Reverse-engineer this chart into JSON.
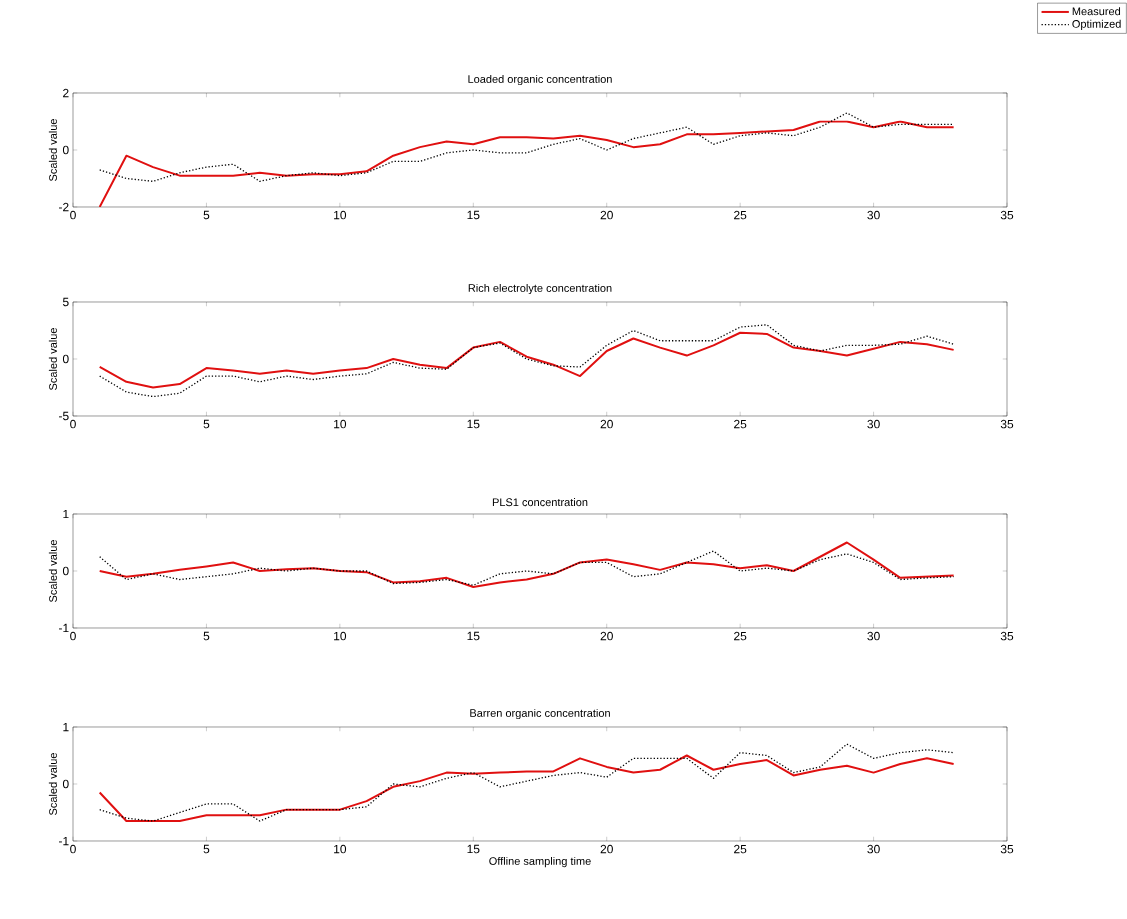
{
  "chart_data": [
    {
      "type": "line",
      "title": "Loaded organic concentration",
      "ylabel": "Scaled value",
      "legend": "top right",
      "x": [
        1,
        2,
        3,
        4,
        5,
        6,
        7,
        8,
        9,
        10,
        11,
        12,
        13,
        14,
        15,
        16,
        17,
        18,
        19,
        20,
        21,
        22,
        23,
        24,
        25,
        26,
        27,
        28,
        29,
        30,
        31,
        32,
        33
      ],
      "xlim": [
        0,
        35
      ],
      "xticks": [
        0,
        5,
        10,
        15,
        20,
        25,
        30,
        35
      ],
      "ylim": [
        -2,
        2
      ],
      "yticks": [
        -2,
        0,
        2
      ],
      "series": [
        {
          "name": "Measured",
          "color": "#e01010",
          "line_style": "solid",
          "values": [
            -2,
            -0.2,
            -0.6,
            -0.9,
            -0.9,
            -0.9,
            -0.8,
            -0.9,
            -0.85,
            -0.85,
            -0.75,
            -0.2,
            0.1,
            0.3,
            0.2,
            0.45,
            0.45,
            0.4,
            0.5,
            0.35,
            0.1,
            0.2,
            0.55,
            0.55,
            0.6,
            0.65,
            0.7,
            1.0,
            1.0,
            0.8,
            1.0,
            0.8,
            0.8
          ]
        },
        {
          "name": "Optimized",
          "color": "#000000",
          "line_style": "dotted",
          "values": [
            -0.7,
            -1.0,
            -1.1,
            -0.8,
            -0.6,
            -0.5,
            -1.1,
            -0.9,
            -0.8,
            -0.9,
            -0.8,
            -0.4,
            -0.4,
            -0.1,
            0.0,
            -0.1,
            -0.1,
            0.2,
            0.4,
            0.0,
            0.4,
            0.6,
            0.8,
            0.2,
            0.5,
            0.6,
            0.5,
            0.8,
            1.3,
            0.8,
            0.9,
            0.9,
            0.9
          ]
        }
      ]
    },
    {
      "type": "line",
      "title": "Rich electrolyte concentration",
      "ylabel": "Scaled value",
      "x": [
        1,
        2,
        3,
        4,
        5,
        6,
        7,
        8,
        9,
        10,
        11,
        12,
        13,
        14,
        15,
        16,
        17,
        18,
        19,
        20,
        21,
        22,
        23,
        24,
        25,
        26,
        27,
        28,
        29,
        30,
        31,
        32,
        33
      ],
      "xlim": [
        0,
        35
      ],
      "xticks": [
        0,
        5,
        10,
        15,
        20,
        25,
        30,
        35
      ],
      "ylim": [
        -5,
        5
      ],
      "yticks": [
        -5,
        0,
        5
      ],
      "series": [
        {
          "color": "#e01010",
          "line_style": "solid",
          "values": [
            -0.7,
            -2,
            -2.5,
            -2.2,
            -0.8,
            -1,
            -1.3,
            -1,
            -1.3,
            -1,
            -0.8,
            0,
            -0.5,
            -0.8,
            1,
            1.5,
            0.2,
            -0.5,
            -1.5,
            0.7,
            1.8,
            1.0,
            0.3,
            1.2,
            2.3,
            2.2,
            1.0,
            0.7,
            0.3,
            0.9,
            1.5,
            1.3,
            0.8
          ]
        },
        {
          "color": "#000000",
          "line_style": "dotted",
          "values": [
            -1.5,
            -2.9,
            -3.3,
            -3,
            -1.5,
            -1.5,
            -2,
            -1.5,
            -1.8,
            -1.5,
            -1.3,
            -0.3,
            -0.8,
            -0.9,
            1.0,
            1.4,
            0.0,
            -0.6,
            -0.7,
            1.2,
            2.5,
            1.6,
            1.6,
            1.6,
            2.8,
            3.0,
            1.2,
            0.7,
            1.2,
            1.2,
            1.3,
            2.0,
            1.3
          ]
        }
      ]
    },
    {
      "type": "line",
      "title": "PLS1 concentration",
      "ylabel": "Scaled value",
      "x": [
        1,
        2,
        3,
        4,
        5,
        6,
        7,
        8,
        9,
        10,
        11,
        12,
        13,
        14,
        15,
        16,
        17,
        18,
        19,
        20,
        21,
        22,
        23,
        24,
        25,
        26,
        27,
        28,
        29,
        30,
        31,
        32,
        33
      ],
      "xlim": [
        0,
        35
      ],
      "xticks": [
        0,
        5,
        10,
        15,
        20,
        25,
        30,
        35
      ],
      "ylim": [
        -1,
        1
      ],
      "yticks": [
        -1,
        0,
        1
      ],
      "series": [
        {
          "color": "#e01010",
          "line_style": "solid",
          "values": [
            0,
            -0.1,
            -0.05,
            0.02,
            0.08,
            0.15,
            0.0,
            0.03,
            0.05,
            0,
            -0.02,
            -0.2,
            -0.18,
            -0.12,
            -0.28,
            -0.2,
            -0.15,
            -0.05,
            0.15,
            0.2,
            0.12,
            0.02,
            0.15,
            0.12,
            0.05,
            0.1,
            0.0,
            0.25,
            0.5,
            0.2,
            -0.12,
            -0.1,
            -0.08
          ]
        },
        {
          "color": "#000000",
          "line_style": "dotted",
          "values": [
            0.25,
            -0.15,
            -0.05,
            -0.15,
            -0.1,
            -0.05,
            0.05,
            0.0,
            0.05,
            0.0,
            0.0,
            -0.22,
            -0.2,
            -0.15,
            -0.25,
            -0.05,
            0.0,
            -0.05,
            0.15,
            0.15,
            -0.1,
            -0.05,
            0.15,
            0.35,
            0.0,
            0.05,
            0.0,
            0.2,
            0.3,
            0.15,
            -0.15,
            -0.12,
            -0.1
          ]
        }
      ]
    },
    {
      "type": "line",
      "title": "Barren organic concentration",
      "ylabel": "Scaled value",
      "xlabel": "Offline sampling time",
      "x": [
        1,
        2,
        3,
        4,
        5,
        6,
        7,
        8,
        9,
        10,
        11,
        12,
        13,
        14,
        15,
        16,
        17,
        18,
        19,
        20,
        21,
        22,
        23,
        24,
        25,
        26,
        27,
        28,
        29,
        30,
        31,
        32,
        33
      ],
      "xlim": [
        0,
        35
      ],
      "xticks": [
        0,
        5,
        10,
        15,
        20,
        25,
        30,
        35
      ],
      "ylim": [
        -1,
        1
      ],
      "yticks": [
        -1,
        0,
        1
      ],
      "series": [
        {
          "color": "#e01010",
          "line_style": "solid",
          "values": [
            -0.15,
            -0.65,
            -0.65,
            -0.65,
            -0.55,
            -0.55,
            -0.55,
            -0.45,
            -0.45,
            -0.45,
            -0.3,
            -0.05,
            0.05,
            0.2,
            0.18,
            0.2,
            0.22,
            0.22,
            0.45,
            0.3,
            0.2,
            0.25,
            0.5,
            0.25,
            0.35,
            0.42,
            0.15,
            0.25,
            0.32,
            0.2,
            0.35,
            0.45,
            0.35
          ]
        },
        {
          "color": "#000000",
          "line_style": "dotted",
          "values": [
            -0.45,
            -0.6,
            -0.65,
            -0.5,
            -0.35,
            -0.35,
            -0.65,
            -0.45,
            -0.45,
            -0.45,
            -0.4,
            0.0,
            -0.05,
            0.1,
            0.2,
            -0.05,
            0.05,
            0.15,
            0.2,
            0.12,
            0.45,
            0.45,
            0.45,
            0.1,
            0.55,
            0.5,
            0.2,
            0.3,
            0.7,
            0.45,
            0.55,
            0.6,
            0.55
          ]
        }
      ]
    }
  ]
}
